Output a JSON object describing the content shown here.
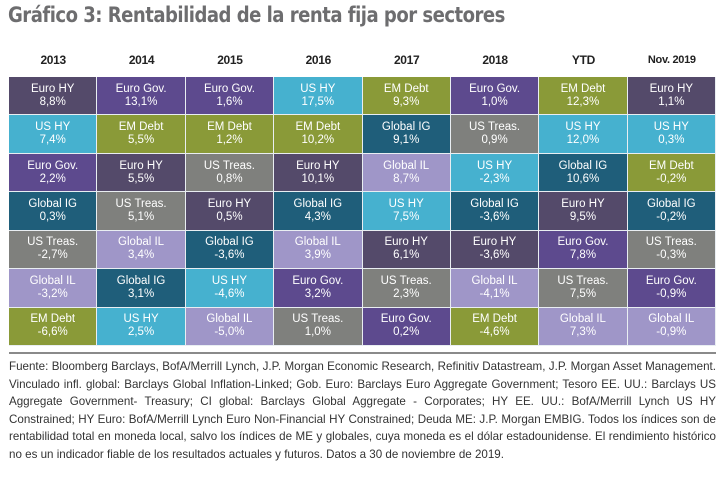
{
  "title": "Gráfico 3: Rentabilidad de la renta fija por sectores",
  "sector_colors": {
    "Euro HY": "#544a6a",
    "Euro Gov.": "#5d4a8e",
    "US HY": "#46b1cf",
    "EM Debt": "#8a9a38",
    "Global IG": "#1f5e7a",
    "US Treas.": "#7f807d",
    "Global IL": "#9f96c8"
  },
  "chart_data": {
    "type": "table",
    "title": "Gráfico 3: Rentabilidad de la renta fija por sectores",
    "columns": [
      "2013",
      "2014",
      "2015",
      "2016",
      "2017",
      "2018",
      "YTD",
      "Nov. 2019"
    ],
    "units": "%",
    "rows_ranked": true,
    "data": [
      [
        {
          "sector": "Euro HY",
          "value": "8,8%"
        },
        {
          "sector": "US HY",
          "value": "7,4%"
        },
        {
          "sector": "Euro Gov.",
          "value": "2,2%"
        },
        {
          "sector": "Global IG",
          "value": "0,3%"
        },
        {
          "sector": "US Treas.",
          "value": "-2,7%"
        },
        {
          "sector": "Global IL",
          "value": "-3,2%"
        },
        {
          "sector": "EM Debt",
          "value": "-6,6%"
        }
      ],
      [
        {
          "sector": "Euro Gov.",
          "value": "13,1%"
        },
        {
          "sector": "EM Debt",
          "value": "5,5%"
        },
        {
          "sector": "Euro HY",
          "value": "5,5%"
        },
        {
          "sector": "US Treas.",
          "value": "5,1%"
        },
        {
          "sector": "Global IL",
          "value": "3,4%"
        },
        {
          "sector": "Global IG",
          "value": "3,1%"
        },
        {
          "sector": "US HY",
          "value": "2,5%"
        }
      ],
      [
        {
          "sector": "Euro Gov.",
          "value": "1,6%"
        },
        {
          "sector": "EM Debt",
          "value": "1,2%"
        },
        {
          "sector": "US Treas.",
          "value": "0,8%"
        },
        {
          "sector": "Euro HY",
          "value": "0,5%"
        },
        {
          "sector": "Global IG",
          "value": "-3,6%"
        },
        {
          "sector": "US HY",
          "value": "-4,6%"
        },
        {
          "sector": "Global IL",
          "value": "-5,0%"
        }
      ],
      [
        {
          "sector": "US HY",
          "value": "17,5%"
        },
        {
          "sector": "EM Debt",
          "value": "10,2%"
        },
        {
          "sector": "Euro HY",
          "value": "10,1%"
        },
        {
          "sector": "Global IG",
          "value": "4,3%"
        },
        {
          "sector": "Global IL",
          "value": "3,9%"
        },
        {
          "sector": "Euro Gov.",
          "value": "3,2%"
        },
        {
          "sector": "US Treas.",
          "value": "1,0%"
        }
      ],
      [
        {
          "sector": "EM Debt",
          "value": "9,3%"
        },
        {
          "sector": "Global IG",
          "value": "9,1%"
        },
        {
          "sector": "Global IL",
          "value": "8,7%"
        },
        {
          "sector": "US HY",
          "value": "7,5%"
        },
        {
          "sector": "Euro HY",
          "value": "6,1%"
        },
        {
          "sector": "US Treas.",
          "value": "2,3%"
        },
        {
          "sector": "Euro Gov.",
          "value": "0,2%"
        }
      ],
      [
        {
          "sector": "Euro Gov.",
          "value": "1,0%"
        },
        {
          "sector": "US Treas.",
          "value": "0,9%"
        },
        {
          "sector": "US HY",
          "value": "-2,3%"
        },
        {
          "sector": "Global IG",
          "value": "-3,6%"
        },
        {
          "sector": "Euro HY",
          "value": "-3,6%"
        },
        {
          "sector": "Global IL",
          "value": "-4,1%"
        },
        {
          "sector": "EM Debt",
          "value": "-4,6%"
        }
      ],
      [
        {
          "sector": "EM Debt",
          "value": "12,3%"
        },
        {
          "sector": "US HY",
          "value": "12,0%"
        },
        {
          "sector": "Global IG",
          "value": "10,6%"
        },
        {
          "sector": "Euro HY",
          "value": "9,5%"
        },
        {
          "sector": "Euro Gov.",
          "value": "7,8%"
        },
        {
          "sector": "US Treas.",
          "value": "7,5%"
        },
        {
          "sector": "Global IL",
          "value": "7,3%"
        }
      ],
      [
        {
          "sector": "Euro HY",
          "value": "1,1%"
        },
        {
          "sector": "US HY",
          "value": "0,3%"
        },
        {
          "sector": "EM Debt",
          "value": "-0,2%"
        },
        {
          "sector": "Global IG",
          "value": "-0,2%"
        },
        {
          "sector": "US Treas.",
          "value": "-0,3%"
        },
        {
          "sector": "Euro Gov.",
          "value": "-0,9%"
        },
        {
          "sector": "Global IL",
          "value": "-0,9%"
        }
      ]
    ]
  },
  "footnote": "Fuente: Bloomberg Barclays, BofA/Merrill Lynch, J.P. Morgan Economic Research, Refinitiv Datastream, J.P. Morgan Asset Management. Vinculado infl. global: Barclays Global Inflation-Linked; Gob. Euro: Barclays Euro Aggregate Government; Tesoro EE. UU.: Barclays US Aggregate Government- Treasury; CI global: Barclays Global Aggregate - Corporates; HY EE. UU.: BofA/Merrill Lynch US HY Constrained; HY Euro: BofA/Merrill Lynch Euro Non-Financial HY Constrained; Deuda ME: J.P. Morgan EMBIG. Todos los índices son de rentabilidad total en moneda local, salvo los índices de ME y globales, cuya moneda es el dólar estadounidense. El rendimiento histórico no es un indicador fiable de los resultados actuales y futuros. Datos a 30 de noviembre de 2019."
}
